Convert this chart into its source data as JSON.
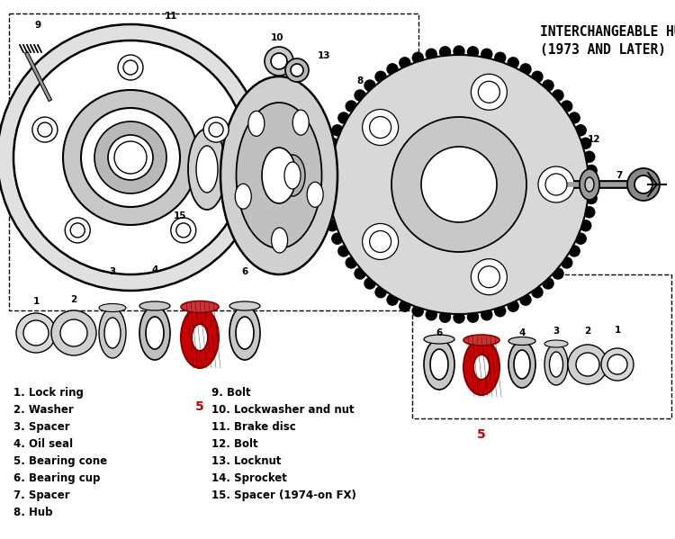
{
  "bg_color": "#ffffff",
  "text_color": "#000000",
  "red_color": "#cc0000",
  "title_line1": "INTERCHANGEABLE HUB",
  "title_line2": "(1973 AND LATER)",
  "legend_left": [
    "1. Lock ring",
    "2. Washer",
    "3. Spacer",
    "4. Oil seal",
    "5. Bearing cone",
    "6. Bearing cup",
    "7. Spacer",
    "8. Hub"
  ],
  "legend_right": [
    "9. Bolt",
    "10. Lockwasher and nut",
    "11. Brake disc",
    "12. Bolt",
    "13. Locknut",
    "14. Sprocket",
    "15. Spacer (1974-on FX)"
  ],
  "figw": 7.5,
  "figh": 5.99,
  "dpi": 100
}
